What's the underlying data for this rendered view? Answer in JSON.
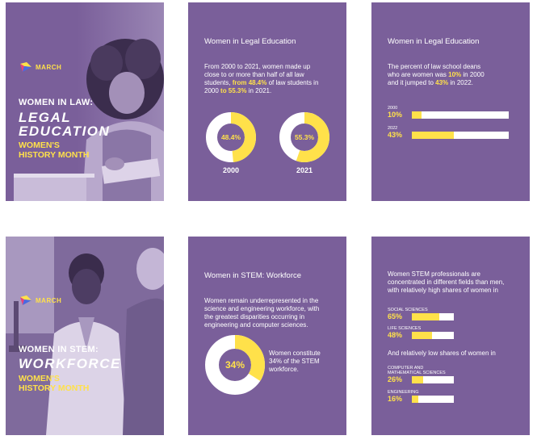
{
  "colors": {
    "card": "#7a5f9a",
    "accent": "#ffe14a",
    "light": "#ffffff"
  },
  "card1": {
    "logo": "MARCH",
    "line1": "WOMEN IN LAW:",
    "big1": "LEGAL",
    "big2": "EDUCATION",
    "hist1": "WOMEN'S",
    "hist2": "HISTORY MONTH"
  },
  "card2": {
    "title": "Women in Legal Education",
    "p1": "From 2000 to 2021, women made up",
    "p2": "close to or more than half of all law",
    "p3a": "students, ",
    "p3b": "from 48.4%",
    "p3c": " of law students in",
    "p4a": "2000 ",
    "p4b": "to 55.3%",
    "p4c": " in 2021.",
    "donuts": [
      {
        "value": "48.4%",
        "pct": 48.4,
        "year": "2000"
      },
      {
        "value": "55.3%",
        "pct": 55.3,
        "year": "2021"
      }
    ]
  },
  "card3": {
    "title": "Women in Legal Education",
    "p1": "The percent of law school deans",
    "p2a": "who are women was ",
    "p2b": "10%",
    "p2c": " in 2000",
    "p3a": "and it jumped to ",
    "p3b": "43%",
    "p3c": " in 2022.",
    "bars": [
      {
        "year": "2000",
        "pct_label": "10%",
        "pct": 10
      },
      {
        "year": "2022",
        "pct_label": "43%",
        "pct": 43
      }
    ]
  },
  "card4": {
    "logo": "MARCH",
    "line1": "WOMEN IN STEM:",
    "big1": "WORKFORCE",
    "hist1": "WOMEN'S",
    "hist2": "HISTORY MONTH"
  },
  "card5": {
    "title": "Women in STEM: Workforce",
    "p1": "Women remain underrepresented in the",
    "p2": "science and engineering workforce, with",
    "p3": "the greatest disparities occurring in",
    "p4": "engineering and computer sciences.",
    "donut": {
      "value": "34%",
      "pct": 34
    },
    "note1": "Women constitute",
    "note2": "34% of the STEM",
    "note3": "workforce."
  },
  "card6": {
    "p1": "Women STEM professionals are",
    "p2": "concentrated in different fields than men,",
    "p3": "with relatively high shares of women in",
    "high": [
      {
        "field": "SOCIAL SCIENCES",
        "pct_label": "65%",
        "pct": 65
      },
      {
        "field": "LIFE SCIENCES",
        "pct_label": "48%",
        "pct": 48
      }
    ],
    "mid": "And relatively low shares of women in",
    "low": [
      {
        "field1": "COMPUTER AND",
        "field2": "MATHEMATICAL SCIENCES",
        "pct_label": "26%",
        "pct": 26
      },
      {
        "field1": "ENGINEERING",
        "field2": "",
        "pct_label": "16%",
        "pct": 16
      }
    ]
  }
}
